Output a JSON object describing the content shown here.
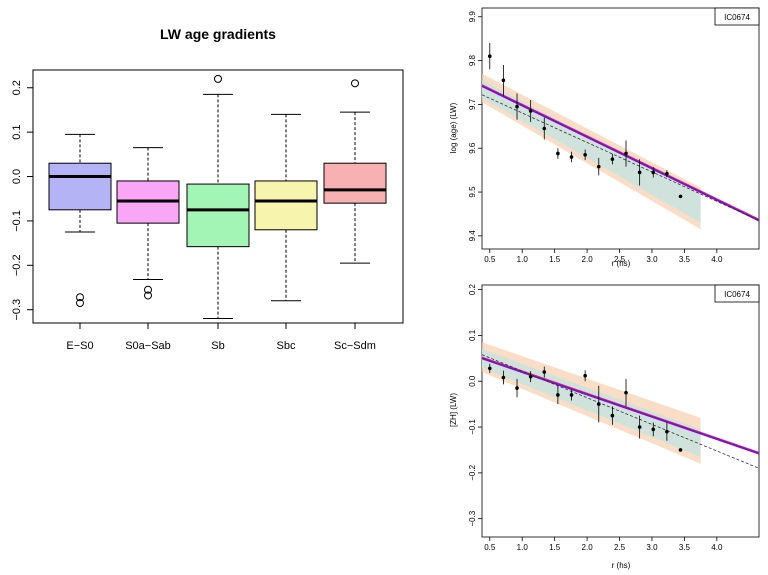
{
  "chart_data": [
    {
      "type": "box",
      "title": "LW age gradients",
      "xlabel": "",
      "ylabel": "",
      "ylim": [
        -0.33,
        0.24
      ],
      "yticks": [
        -0.3,
        -0.2,
        -0.1,
        0.0,
        0.1,
        0.2
      ],
      "ytick_labels": [
        "−0.3",
        "−0.2",
        "−0.1",
        "0.0",
        "0.1",
        "0.2"
      ],
      "categories": [
        "E−S0",
        "S0a−Sab",
        "Sb",
        "Sbc",
        "Sc−Sdm"
      ],
      "colors": [
        "#b3b3f5",
        "#f9a6f7",
        "#a3f5b5",
        "#f7f5ad",
        "#f8b1b3"
      ],
      "boxes": [
        {
          "category": "E−S0",
          "whisker_low": -0.125,
          "q1": -0.075,
          "median": 0.0,
          "q3": 0.03,
          "whisker_high": 0.095,
          "outliers": [
            -0.272,
            -0.285
          ]
        },
        {
          "category": "S0a−Sab",
          "whisker_low": -0.232,
          "q1": -0.105,
          "median": -0.055,
          "q3": -0.01,
          "whisker_high": 0.065,
          "outliers": [
            -0.255,
            -0.268
          ]
        },
        {
          "category": "Sb",
          "whisker_low": -0.32,
          "q1": -0.158,
          "median": -0.075,
          "q3": -0.017,
          "whisker_high": 0.185,
          "outliers": [
            0.22
          ]
        },
        {
          "category": "Sbc",
          "whisker_low": -0.28,
          "q1": -0.12,
          "median": -0.055,
          "q3": -0.01,
          "whisker_high": 0.14,
          "outliers": []
        },
        {
          "category": "Sc−Sdm",
          "whisker_low": -0.195,
          "q1": -0.06,
          "median": -0.03,
          "q3": 0.03,
          "whisker_high": 0.145,
          "outliers": [
            0.21
          ]
        }
      ]
    },
    {
      "type": "scatter",
      "title": "",
      "legend_label": "IC0674",
      "legend_position": "top-right",
      "xlabel": "r (hs)",
      "ylabel": "log (age) (LW)",
      "xlim": [
        0.38,
        4.65
      ],
      "ylim": [
        9.37,
        9.92
      ],
      "xticks": [
        0.5,
        1.0,
        1.5,
        2.0,
        2.5,
        3.0,
        3.5,
        4.0
      ],
      "xtick_labels": [
        "0.5",
        "1.0",
        "1.5",
        "2.0",
        "2.5",
        "3.0",
        "3.5",
        "4.0"
      ],
      "yticks": [
        9.4,
        9.5,
        9.6,
        9.7,
        9.8,
        9.9
      ],
      "ytick_labels": [
        "9.4",
        "9.5",
        "9.6",
        "9.7",
        "9.8",
        "9.9"
      ],
      "points": [
        {
          "x": 0.5,
          "y": 9.81,
          "err": 0.03
        },
        {
          "x": 0.71,
          "y": 9.755,
          "err": 0.035
        },
        {
          "x": 0.92,
          "y": 9.695,
          "err": 0.03
        },
        {
          "x": 1.13,
          "y": 9.685,
          "err": 0.025
        },
        {
          "x": 1.34,
          "y": 9.645,
          "err": 0.025
        },
        {
          "x": 1.55,
          "y": 9.588,
          "err": 0.012
        },
        {
          "x": 1.76,
          "y": 9.58,
          "err": 0.012
        },
        {
          "x": 1.97,
          "y": 9.585,
          "err": 0.012
        },
        {
          "x": 2.18,
          "y": 9.558,
          "err": 0.02
        },
        {
          "x": 2.39,
          "y": 9.575,
          "err": 0.012
        },
        {
          "x": 2.6,
          "y": 9.588,
          "err": 0.03
        },
        {
          "x": 2.81,
          "y": 9.545,
          "err": 0.03
        },
        {
          "x": 3.02,
          "y": 9.545,
          "err": 0.012
        },
        {
          "x": 3.23,
          "y": 9.542,
          "err": 0.008
        },
        {
          "x": 3.44,
          "y": 9.49,
          "err": 0.0
        }
      ],
      "fit_line": {
        "x": [
          0.38,
          4.65
        ],
        "y": [
          9.742,
          9.435
        ]
      },
      "fit_dashed": {
        "x": [
          0.38,
          4.65
        ],
        "y": [
          9.722,
          9.435
        ]
      },
      "band_outer": {
        "x": [
          0.38,
          3.75
        ],
        "y_upper": [
          9.77,
          9.51
        ],
        "y_lower": [
          9.705,
          9.415
        ]
      },
      "band_inner": {
        "x": [
          0.38,
          3.75
        ],
        "y_upper": [
          9.755,
          9.495
        ],
        "y_lower": [
          9.715,
          9.43
        ]
      },
      "line_color": "#7a12c8",
      "band_colors": [
        "#f7cfae",
        "#c9e3df"
      ]
    },
    {
      "type": "scatter",
      "title": "",
      "legend_label": "IC0674",
      "legend_position": "top-right",
      "xlabel": "r (hs)",
      "ylabel": "[ZH] (LW)",
      "xlim": [
        0.38,
        4.65
      ],
      "ylim": [
        -0.34,
        0.21
      ],
      "xticks": [
        0.5,
        1.0,
        1.5,
        2.0,
        2.5,
        3.0,
        3.5,
        4.0
      ],
      "xtick_labels": [
        "0.5",
        "1.0",
        "1.5",
        "2.0",
        "2.5",
        "3.0",
        "3.5",
        "4.0"
      ],
      "yticks": [
        -0.3,
        -0.2,
        -0.1,
        0.0,
        0.1,
        0.2
      ],
      "ytick_labels": [
        "−0.3",
        "−0.2",
        "−0.1",
        "0.0",
        "0.1",
        "0.2"
      ],
      "points": [
        {
          "x": 0.5,
          "y": 0.028,
          "err": 0.01
        },
        {
          "x": 0.71,
          "y": 0.008,
          "err": 0.015
        },
        {
          "x": 0.92,
          "y": -0.015,
          "err": 0.02
        },
        {
          "x": 1.13,
          "y": 0.01,
          "err": 0.012
        },
        {
          "x": 1.34,
          "y": 0.02,
          "err": 0.012
        },
        {
          "x": 1.55,
          "y": -0.03,
          "err": 0.02
        },
        {
          "x": 1.76,
          "y": -0.03,
          "err": 0.012
        },
        {
          "x": 1.97,
          "y": 0.012,
          "err": 0.012
        },
        {
          "x": 2.18,
          "y": -0.05,
          "err": 0.04
        },
        {
          "x": 2.39,
          "y": -0.075,
          "err": 0.02
        },
        {
          "x": 2.6,
          "y": -0.025,
          "err": 0.03
        },
        {
          "x": 2.81,
          "y": -0.1,
          "err": 0.025
        },
        {
          "x": 3.02,
          "y": -0.105,
          "err": 0.015
        },
        {
          "x": 3.23,
          "y": -0.11,
          "err": 0.02
        },
        {
          "x": 3.44,
          "y": -0.15,
          "err": 0.0
        }
      ],
      "fit_line": {
        "x": [
          0.38,
          4.65
        ],
        "y": [
          0.05,
          -0.158
        ]
      },
      "fit_dashed": {
        "x": [
          0.38,
          4.65
        ],
        "y": [
          0.058,
          -0.19
        ]
      },
      "band_outer": {
        "x": [
          0.38,
          3.75
        ],
        "y_upper": [
          0.085,
          -0.08
        ],
        "y_lower": [
          0.02,
          -0.18
        ]
      },
      "band_inner": {
        "x": [
          0.38,
          3.75
        ],
        "y_upper": [
          0.07,
          -0.105
        ],
        "y_lower": [
          0.03,
          -0.165
        ]
      },
      "line_color": "#7a12c8",
      "band_colors": [
        "#f7cfae",
        "#c9e3df"
      ]
    }
  ]
}
